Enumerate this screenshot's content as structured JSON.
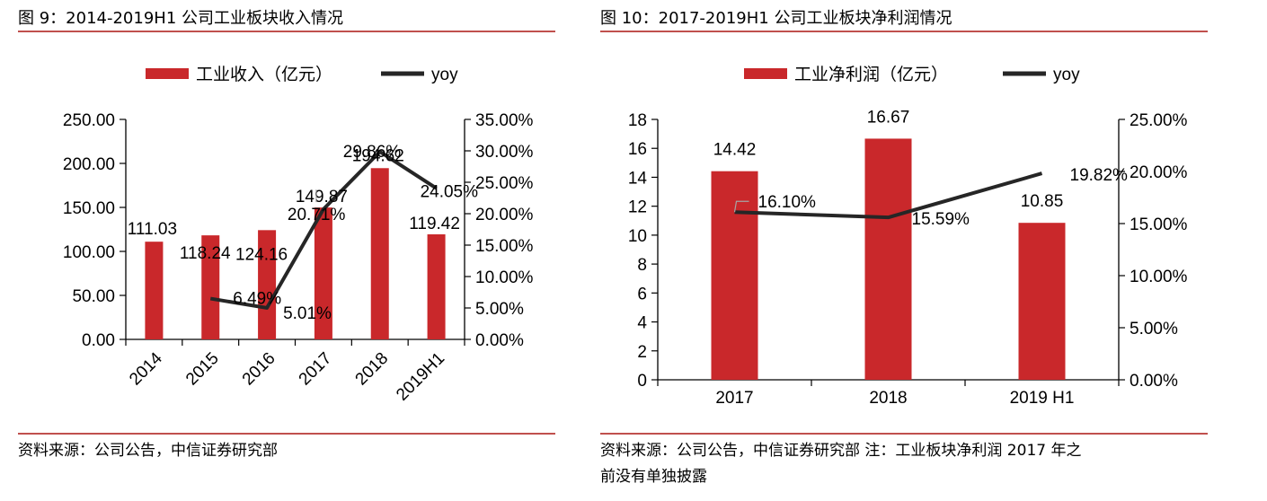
{
  "colors": {
    "bar": "#c9282b",
    "line": "#262626",
    "rule": "#c0504d"
  },
  "left_panel": {
    "title": "图 9：2014-2019H1 公司工业板块收入情况",
    "source": "资料来源：公司公告，中信证券研究部"
  },
  "right_panel": {
    "title": "图 10：2017-2019H1 公司工业板块净利润情况",
    "source_line1": "资料来源：公司公告，中信证券研究部 注：工业板块净利润 2017 年之",
    "source_line2": "前没有单独披露"
  },
  "chart_data": [
    {
      "type": "bar",
      "categories": [
        "2014",
        "2015",
        "2016",
        "2017",
        "2018",
        "2019H1"
      ],
      "series": [
        {
          "name": "工业收入（亿元）",
          "type": "bar",
          "axis": "left",
          "values": [
            111.03,
            118.24,
            124.16,
            149.87,
            194.62,
            119.42
          ],
          "labels": [
            "111.03",
            "118.24",
            "124.16",
            "149.87",
            "194.62",
            "119.42"
          ]
        },
        {
          "name": "yoy",
          "type": "line",
          "axis": "right",
          "values": [
            null,
            6.49,
            5.01,
            20.71,
            29.86,
            24.05
          ],
          "labels": [
            null,
            "6.49%",
            "5.01%",
            "20.71%",
            "29.86%",
            "24.05%"
          ]
        }
      ],
      "y_left": {
        "min": 0,
        "max": 250,
        "ticks": [
          "0.00",
          "50.00",
          "100.00",
          "150.00",
          "200.00",
          "250.00"
        ]
      },
      "y_right": {
        "min": 0,
        "max": 35,
        "ticks": [
          "0.00%",
          "5.00%",
          "10.00%",
          "15.00%",
          "20.00%",
          "25.00%",
          "30.00%",
          "35.00%"
        ]
      },
      "legend": "top"
    },
    {
      "type": "bar",
      "categories": [
        "2017",
        "2018",
        "2019 H1"
      ],
      "series": [
        {
          "name": "工业净利润（亿元）",
          "type": "bar",
          "axis": "left",
          "values": [
            14.42,
            16.67,
            10.85
          ],
          "labels": [
            "14.42",
            "16.67",
            "10.85"
          ]
        },
        {
          "name": "yoy",
          "type": "line",
          "axis": "right",
          "values": [
            16.1,
            15.59,
            19.82
          ],
          "labels": [
            "16.10%",
            "15.59%",
            "19.82%"
          ]
        }
      ],
      "y_left": {
        "min": 0,
        "max": 18,
        "ticks": [
          "0",
          "2",
          "4",
          "6",
          "8",
          "10",
          "12",
          "14",
          "16",
          "18"
        ]
      },
      "y_right": {
        "min": 0,
        "max": 25,
        "ticks": [
          "0.00%",
          "5.00%",
          "10.00%",
          "15.00%",
          "20.00%",
          "25.00%"
        ]
      },
      "legend": "top"
    }
  ]
}
